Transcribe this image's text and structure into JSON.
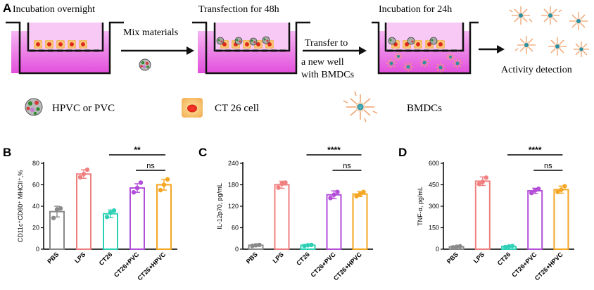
{
  "schematic": {
    "panel_label": "A",
    "step1": "Incubation overnight",
    "step2": "Transfection for 48h",
    "step3": "Incubation for 24h",
    "arrow1_label": "Mix materials",
    "arrow2_label_lines": [
      "Transfer to",
      "a new well",
      "with BMDCs"
    ],
    "final_label": "Activity detection",
    "legend": {
      "hpvc": "HPVC or PVC",
      "ct26": "CT 26 cell",
      "bmdc": "BMDCs"
    }
  },
  "chart_data": [
    {
      "panel": "B",
      "type": "bar",
      "ylabel": "CD11c⁺CD80⁺ MHCII⁺,%",
      "ylim": [
        0,
        80
      ],
      "yticks": [
        0,
        20,
        40,
        60,
        80
      ],
      "categories": [
        "PBS",
        "LPS",
        "CT26",
        "CT26+PVC",
        "CT26+HPVC"
      ],
      "colors": [
        "#8a8a8a",
        "#f08080",
        "#2fd1b6",
        "#b24ed8",
        "#f5a623"
      ],
      "values": [
        35,
        70,
        33,
        57,
        60
      ],
      "errors": [
        5,
        4,
        3.5,
        4,
        5
      ],
      "points": [
        [
          29,
          37,
          38
        ],
        [
          67,
          70,
          74
        ],
        [
          30,
          34,
          36
        ],
        [
          53,
          57,
          62
        ],
        [
          55,
          60,
          65
        ]
      ],
      "significance": [
        {
          "from": 2,
          "to": 4,
          "label": "**",
          "level": 1
        },
        {
          "from": 3,
          "to": 4,
          "label": "ns",
          "level": 0
        }
      ]
    },
    {
      "panel": "C",
      "type": "bar",
      "ylabel": "IL-12p70, pg/mL",
      "ylim": [
        0,
        240
      ],
      "yticks": [
        0,
        60,
        120,
        180,
        240
      ],
      "categories": [
        "PBS",
        "LPS",
        "CT26",
        "CT26+PVC",
        "CT26+HPVC"
      ],
      "colors": [
        "#8a8a8a",
        "#f08080",
        "#2fd1b6",
        "#b24ed8",
        "#f5a623"
      ],
      "values": [
        11,
        180,
        11,
        152,
        154
      ],
      "errors": [
        2,
        10,
        2,
        11,
        7
      ],
      "points": [
        [
          9,
          11,
          12
        ],
        [
          172,
          183,
          186
        ],
        [
          9,
          11,
          12
        ],
        [
          143,
          152,
          160
        ],
        [
          148,
          154,
          160
        ]
      ],
      "significance": [
        {
          "from": 2,
          "to": 4,
          "label": "****",
          "level": 1
        },
        {
          "from": 3,
          "to": 4,
          "label": "ns",
          "level": 0
        }
      ]
    },
    {
      "panel": "D",
      "type": "bar",
      "ylabel": "TNF-α, pg/mL",
      "ylim": [
        0,
        600
      ],
      "yticks": [
        0,
        150,
        300,
        450,
        600
      ],
      "categories": [
        "PBS",
        "LPS",
        "CT26",
        "CT26+PVC",
        "CT26+HPVC"
      ],
      "colors": [
        "#8a8a8a",
        "#f08080",
        "#2fd1b6",
        "#b24ed8",
        "#f5a623"
      ],
      "values": [
        17,
        475,
        19,
        408,
        416
      ],
      "errors": [
        4,
        30,
        4,
        18,
        25
      ],
      "points": [
        [
          13,
          17,
          20
        ],
        [
          455,
          470,
          500
        ],
        [
          15,
          19,
          22
        ],
        [
          393,
          410,
          422
        ],
        [
          400,
          415,
          440
        ]
      ],
      "significance": [
        {
          "from": 2,
          "to": 4,
          "label": "****",
          "level": 1
        },
        {
          "from": 3,
          "to": 4,
          "label": "ns",
          "level": 0
        }
      ]
    }
  ]
}
